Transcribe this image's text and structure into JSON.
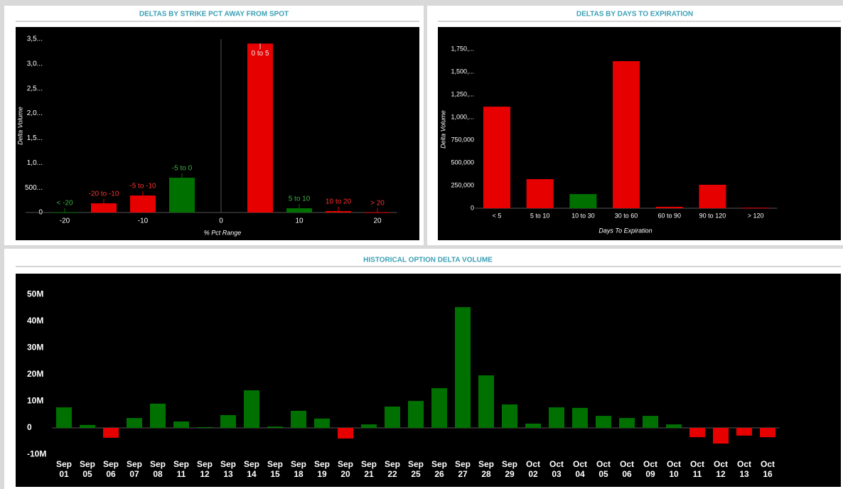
{
  "chart_data": [
    {
      "type": "bar",
      "title": "DELTAS BY STRIKE PCT AWAY FROM SPOT",
      "ylabel": "Delta Volume",
      "xlabel": "% Pct Range",
      "categories": [
        "< -20",
        "-20 to -10",
        "-5 to -10",
        "-5 to 0",
        "0 to 5",
        "5 to 10",
        "10 to 20",
        "> 20"
      ],
      "x": [
        -20,
        -15,
        -10,
        -5,
        5,
        10,
        15,
        20
      ],
      "values": [
        5000,
        186000,
        344000,
        702000,
        3410000,
        86000,
        29000,
        5000
      ],
      "colors": [
        "#007000",
        "#e60000",
        "#e60000",
        "#007000",
        "#e60000",
        "#007000",
        "#e60000",
        "#e60000"
      ],
      "xlim": [
        -25,
        22.5
      ],
      "xticks": [
        -20,
        -10,
        0,
        10,
        20
      ],
      "ylim": [
        0,
        3500000
      ],
      "yticks": [
        0,
        {
          "value": 500000,
          "label": "500..."
        },
        {
          "value": 1000000,
          "label": "1,0..."
        },
        {
          "value": 1500000,
          "label": "1,5..."
        },
        {
          "value": 2000000,
          "label": "2,0..."
        },
        {
          "value": 2500000,
          "label": "2,5..."
        },
        {
          "value": 3000000,
          "label": "3,0..."
        },
        {
          "value": 3500000,
          "label": "3,5..."
        }
      ]
    },
    {
      "type": "bar",
      "title": "DELTAS BY DAYS TO EXPIRATION",
      "ylabel": "Delta Volume",
      "xlabel": "Days To Expiration",
      "categories": [
        "< 5",
        "5 to 10",
        "10 to 30",
        "30 to 60",
        "60 to 90",
        "90 to 120",
        "> 120"
      ],
      "values": [
        1117000,
        320000,
        156000,
        1617000,
        16000,
        258000,
        6000
      ],
      "colors": [
        "#e60000",
        "#e60000",
        "#007000",
        "#e60000",
        "#e60000",
        "#e60000",
        "#e60000"
      ],
      "ylim": [
        0,
        1750000
      ],
      "yticks": [
        0,
        {
          "value": 250000,
          "label": "250,000"
        },
        {
          "value": 500000,
          "label": "500,000"
        },
        {
          "value": 750000,
          "label": "750,000"
        },
        {
          "value": 1000000,
          "label": "1,000,..."
        },
        {
          "value": 1250000,
          "label": "1,250,..."
        },
        {
          "value": 1500000,
          "label": "1,500,..."
        },
        {
          "value": 1750000,
          "label": "1,750,..."
        }
      ]
    },
    {
      "type": "bar",
      "title": "HISTORICAL OPTION DELTA VOLUME",
      "categories": [
        "Sep 01",
        "Sep 05",
        "Sep 06",
        "Sep 07",
        "Sep 08",
        "Sep 11",
        "Sep 12",
        "Sep 13",
        "Sep 14",
        "Sep 15",
        "Sep 18",
        "Sep 19",
        "Sep 20",
        "Sep 21",
        "Sep 22",
        "Sep 25",
        "Sep 26",
        "Sep 27",
        "Sep 28",
        "Sep 29",
        "Oct 02",
        "Oct 03",
        "Oct 04",
        "Oct 05",
        "Oct 06",
        "Oct 09",
        "Oct 10",
        "Oct 11",
        "Oct 12",
        "Oct 13",
        "Oct 16"
      ],
      "values": [
        7700000,
        1100000,
        -3700000,
        3700000,
        9100000,
        2400000,
        300000,
        4800000,
        14100000,
        500000,
        6400000,
        3500000,
        -4000000,
        1300000,
        8000000,
        10100000,
        14900000,
        45300000,
        19700000,
        8800000,
        1600000,
        7700000,
        7500000,
        4500000,
        3700000,
        4500000,
        1300000,
        -3500000,
        -5900000,
        -2900000,
        -3500000
      ],
      "positive_color": "#007000",
      "negative_color": "#e60000",
      "ylim": [
        -10000000,
        50000000
      ],
      "yticks": [
        {
          "value": -10000000,
          "label": "-10M"
        },
        0,
        {
          "value": 10000000,
          "label": "10M"
        },
        {
          "value": 20000000,
          "label": "20M"
        },
        {
          "value": 30000000,
          "label": "30M"
        },
        {
          "value": 40000000,
          "label": "40M"
        },
        {
          "value": 50000000,
          "label": "50M"
        }
      ]
    }
  ]
}
